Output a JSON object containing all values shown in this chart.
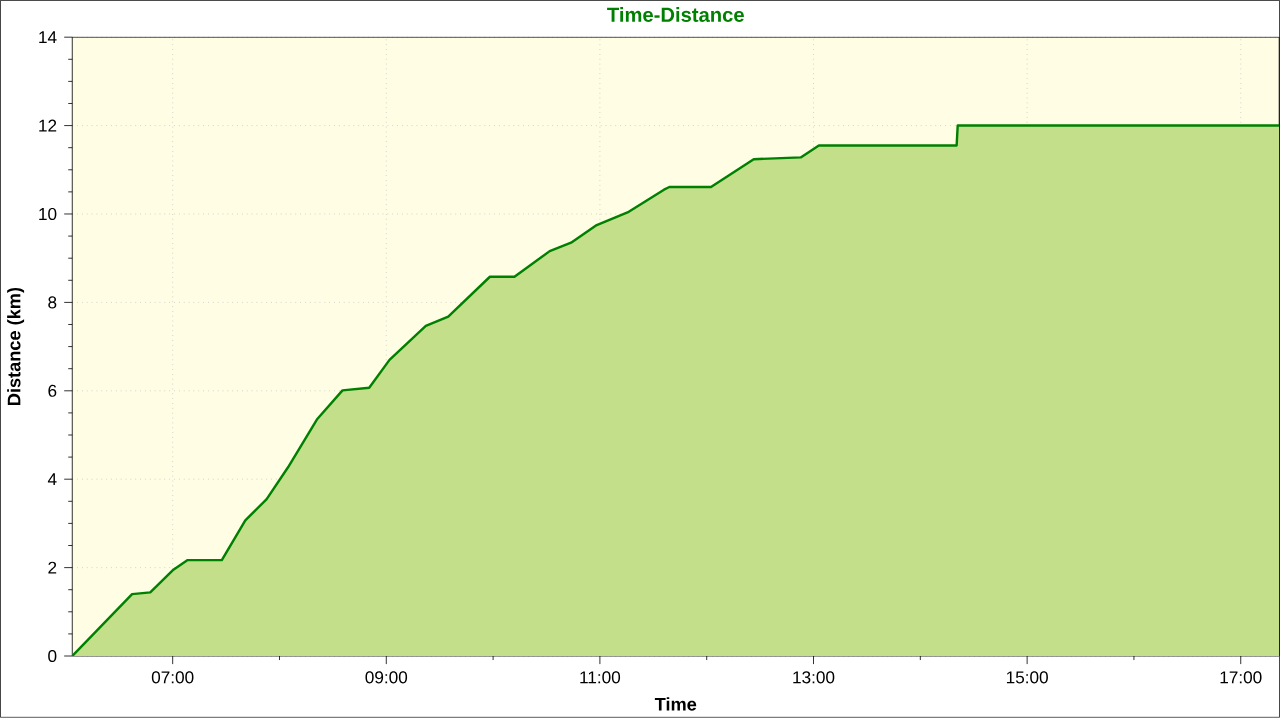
{
  "chart_data": {
    "type": "area",
    "title": "Time-Distance",
    "xlabel": "Time",
    "ylabel": "Distance (km)",
    "xlim": [
      6.06,
      17.36
    ],
    "ylim": [
      0,
      14
    ],
    "xticks": [
      {
        "value": 7,
        "label": "07:00"
      },
      {
        "value": 9,
        "label": "09:00"
      },
      {
        "value": 11,
        "label": "11:00"
      },
      {
        "value": 13,
        "label": "13:00"
      },
      {
        "value": 15,
        "label": "15:00"
      },
      {
        "value": 17,
        "label": "17:00"
      }
    ],
    "yticks": [
      0,
      2,
      4,
      6,
      8,
      10,
      12,
      14
    ],
    "grid": true,
    "marker": "none",
    "line_style": "solid",
    "series": [
      {
        "color": "#008000",
        "x": [
          6.06,
          6.62,
          6.79,
          7.0,
          7.14,
          7.46,
          7.68,
          7.88,
          8.08,
          8.35,
          8.59,
          8.84,
          9.03,
          9.37,
          9.58,
          9.97,
          10.2,
          10.53,
          10.73,
          10.97,
          11.27,
          11.6,
          11.65,
          12.04,
          12.44,
          12.88,
          13.05,
          14.34,
          14.35,
          17.36
        ],
        "values": [
          0,
          1.4,
          1.44,
          1.94,
          2.17,
          2.17,
          3.07,
          3.55,
          4.27,
          5.35,
          6.01,
          6.07,
          6.7,
          7.47,
          7.68,
          8.58,
          8.58,
          9.16,
          9.35,
          9.75,
          10.05,
          10.55,
          10.61,
          10.61,
          11.24,
          11.28,
          11.55,
          11.55,
          12.0,
          12.0
        ]
      }
    ]
  }
}
